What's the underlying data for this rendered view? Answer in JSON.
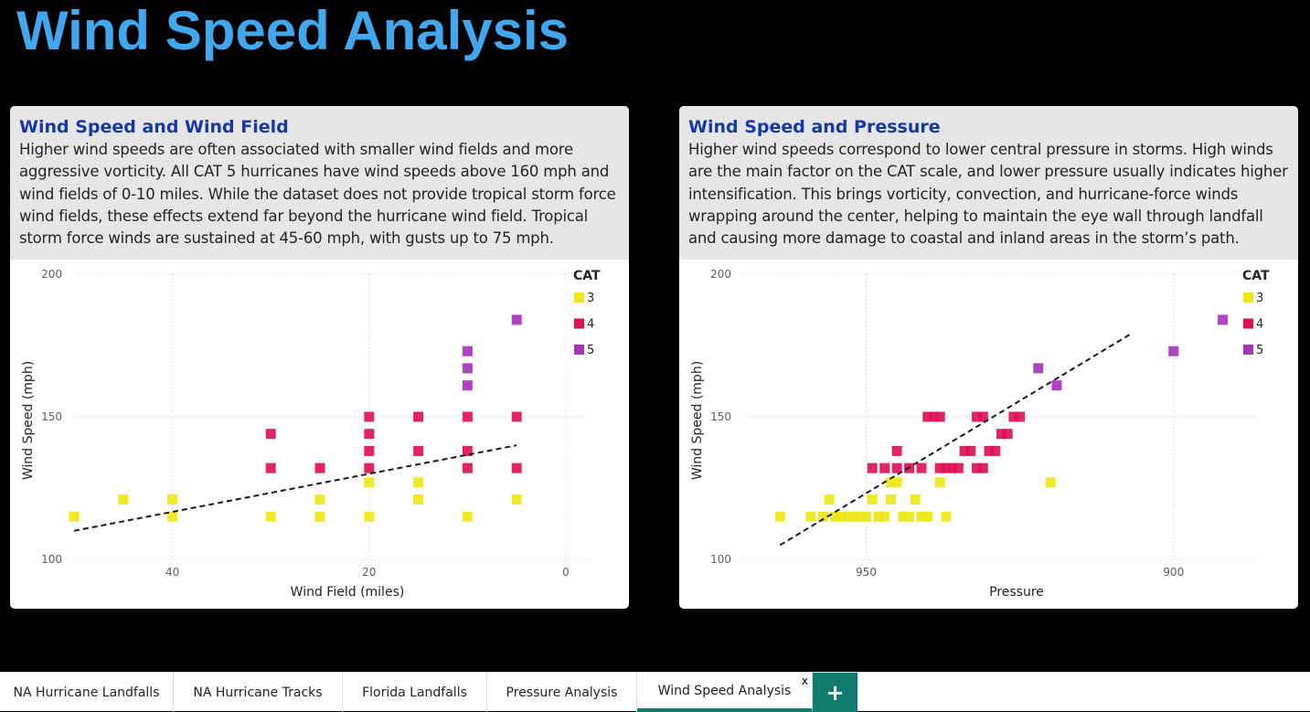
{
  "page": {
    "title": "Wind Speed Analysis"
  },
  "colors": {
    "cat3": "#EBE818",
    "cat4": "#DE1155",
    "cat5": "#A535B7",
    "accent": "#0F7B6C",
    "title": "#41A8F0",
    "card_title": "#1739A8"
  },
  "cards": [
    {
      "title": "Wind Speed and Wind Field",
      "text": "Higher wind speeds are often associated with smaller wind fields and more aggressive vorticity. All CAT 5 hurricanes have wind speeds above 160 mph and wind fields of 0-10 miles. While the dataset does not provide tropical storm force wind fields, these effects extend far beyond the hurricane wind field. Tropical storm force winds are sustained at 45-60 mph, with gusts up to 75 mph."
    },
    {
      "title": "Wind Speed and Pressure",
      "text": "Higher wind speeds correspond to lower central pressure in storms. High winds are the main factor on the CAT scale, and lower pressure usually indicates higher intensification. This brings vorticity, convection, and hurricane-force winds wrapping around the center, helping to maintain the eye wall through landfall and causing more damage to coastal and inland areas in the storm’s path."
    }
  ],
  "chart_data": [
    {
      "type": "scatter",
      "xlabel": "Wind Field (miles)",
      "ylabel": "Wind Speed (mph)",
      "xlim": [
        50,
        0
      ],
      "ylim": [
        100,
        200
      ],
      "x_ticks": [
        40,
        20,
        0
      ],
      "y_ticks": [
        100,
        150,
        200
      ],
      "grid": true,
      "trendline": {
        "x": [
          50,
          5
        ],
        "y": [
          110,
          140
        ]
      },
      "legend": {
        "title": "CAT",
        "entries": [
          "3",
          "4",
          "5"
        ],
        "position": "top-right"
      },
      "series": [
        {
          "name": "3",
          "points": [
            [
              50,
              115
            ],
            [
              45,
              121
            ],
            [
              40,
              121
            ],
            [
              40,
              115
            ],
            [
              30,
              115
            ],
            [
              25,
              121
            ],
            [
              25,
              115
            ],
            [
              20,
              127
            ],
            [
              20,
              115
            ],
            [
              15,
              127
            ],
            [
              15,
              121
            ],
            [
              10,
              115
            ],
            [
              5,
              121
            ]
          ]
        },
        {
          "name": "4",
          "points": [
            [
              30,
              144
            ],
            [
              30,
              132
            ],
            [
              25,
              132
            ],
            [
              20,
              150
            ],
            [
              20,
              144
            ],
            [
              20,
              138
            ],
            [
              20,
              132
            ],
            [
              15,
              150
            ],
            [
              15,
              138
            ],
            [
              10,
              150
            ],
            [
              10,
              138
            ],
            [
              10,
              132
            ],
            [
              5,
              150
            ],
            [
              5,
              132
            ]
          ]
        },
        {
          "name": "5",
          "points": [
            [
              10,
              173
            ],
            [
              10,
              167
            ],
            [
              10,
              161
            ],
            [
              5,
              184
            ]
          ]
        }
      ]
    },
    {
      "type": "scatter",
      "xlabel": "Pressure",
      "ylabel": "Wind Speed (mph)",
      "xlim": [
        970,
        890
      ],
      "ylim": [
        100,
        200
      ],
      "x_ticks": [
        950,
        900
      ],
      "y_ticks": [
        100,
        150,
        200
      ],
      "grid": true,
      "trendline": {
        "x": [
          964,
          907
        ],
        "y": [
          105,
          179
        ]
      },
      "legend": {
        "title": "CAT",
        "entries": [
          "3",
          "4",
          "5"
        ],
        "position": "top-right"
      },
      "series": [
        {
          "name": "3",
          "points": [
            [
              964,
              115
            ],
            [
              959,
              115
            ],
            [
              957,
              115
            ],
            [
              956,
              121
            ],
            [
              955,
              115
            ],
            [
              954,
              115
            ],
            [
              953,
              115
            ],
            [
              952,
              115
            ],
            [
              951,
              115
            ],
            [
              950,
              115
            ],
            [
              949,
              121
            ],
            [
              948,
              115
            ],
            [
              947,
              115
            ],
            [
              946,
              121
            ],
            [
              946,
              127
            ],
            [
              945,
              127
            ],
            [
              944,
              115
            ],
            [
              943,
              115
            ],
            [
              942,
              121
            ],
            [
              941,
              115
            ],
            [
              940,
              115
            ],
            [
              938,
              127
            ],
            [
              937,
              115
            ],
            [
              920,
              127
            ]
          ]
        },
        {
          "name": "4",
          "points": [
            [
              949,
              132
            ],
            [
              945,
              132
            ],
            [
              943,
              132
            ],
            [
              941,
              132
            ],
            [
              940,
              150
            ],
            [
              939,
              150
            ],
            [
              938,
              150
            ],
            [
              938,
              132
            ],
            [
              937,
              132
            ],
            [
              936,
              132
            ],
            [
              935,
              132
            ],
            [
              934,
              138
            ],
            [
              933,
              138
            ],
            [
              932,
              150
            ],
            [
              931,
              150
            ],
            [
              930,
              138
            ],
            [
              929,
              138
            ],
            [
              928,
              144
            ],
            [
              927,
              144
            ],
            [
              926,
              150
            ],
            [
              925,
              150
            ],
            [
              931,
              132
            ],
            [
              947,
              132
            ],
            [
              945,
              138
            ],
            [
              932,
              132
            ]
          ]
        },
        {
          "name": "5",
          "points": [
            [
              922,
              167
            ],
            [
              919,
              161
            ],
            [
              900,
              173
            ],
            [
              892,
              184
            ]
          ]
        }
      ]
    }
  ],
  "tabs": [
    {
      "label": "NA Hurricane Landfalls"
    },
    {
      "label": "NA Hurricane Tracks"
    },
    {
      "label": "Florida Landfalls"
    },
    {
      "label": "Pressure Analysis"
    },
    {
      "label": "Wind Speed Analysis",
      "active": true,
      "close": "x"
    }
  ],
  "add_tab": "+"
}
